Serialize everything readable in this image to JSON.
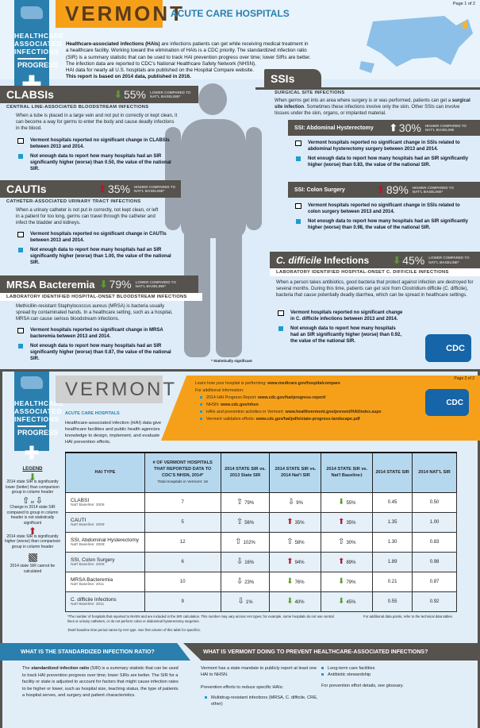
{
  "page1": {
    "page_label": "Page 1 of 2",
    "logo": {
      "lines": [
        "HEALTHCARE",
        "ASSOCIATED",
        "INFECTIONS"
      ],
      "progress": "PROGRESS"
    },
    "state": "VERMONT",
    "title": "ACUTE CARE HOSPITALS",
    "intro": {
      "bold_lead": "Healthcare-associated infections (HAIs)",
      "text": " are infections patients can get while receiving medical treatment in a healthcare facility. Working toward the elimination of HAIs is a CDC priority. The standardized infection ratio (SIR) is a summary statistic that can be used to track HAI prevention progress over time; lower SIRs are better. The infection data are reported to CDC's National Healthcare Safety Network (NHSN).",
      "line2": "HAI data for nearly all U.S. hospitals are published on the Hospital Compare website.",
      "line3": "This report is based on 2014 data, published in 2016."
    },
    "sections": {
      "clabsi": {
        "name": "CLABSIs",
        "arrow": "arrow-down-green",
        "pct": "55%",
        "compare": "LOWER COMPARED TO NAT'L BASELINE*",
        "subtitle": "CENTRAL LINE-ASSOCIATED BLOODSTREAM INFECTIONS",
        "desc": "When a tube is placed in a large vein and not put in correctly or kept clean, it can become a way for germs to enter the body and cause deadly infections in the blood.",
        "item1": "Vermont hospitals reported no significant change in CLABSIs between 2013 and 2014.",
        "item2": "Not enough data to report how many hospitals had an SIR significantly higher (worse) than 0.50, the value of the national SIR."
      },
      "cauti": {
        "name": "CAUTIs",
        "arrow": "arrow-up-red",
        "pct": "35%",
        "compare": "HIGHER COMPARED TO NAT'L BASELINE*",
        "subtitle": "CATHETER-ASSOCIATED URINARY TRACT INFECTIONS",
        "desc": "When a urinary catheter is not put in correctly, not kept clean, or left in a patient for too long, germs can travel through the catheter and infect the bladder and kidneys.",
        "item1": "Vermont hospitals reported no significant change in CAUTIs between 2013 and 2014.",
        "item2": "Not enough data to report how many hospitals had an SIR significantly higher (worse) than 1.00, the value of the national SIR."
      },
      "mrsa": {
        "name": "MRSA Bacteremia",
        "arrow": "arrow-down-green",
        "pct": "79%",
        "compare": "LOWER COMPARED TO NAT'L BASELINE*",
        "subtitle": "LABORATORY IDENTIFIED HOSPITAL-ONSET BLOODSTREAM INFECTIONS",
        "desc": "Methicillin-resistant Staphylococcus aureus (MRSA) is bacteria usually spread by contaminated hands. In a healthcare setting, such as a hospital, MRSA can cause serious bloodstream infections.",
        "item1": "Vermont hospitals reported no significant change in MRSA bacteremia between 2013 and 2014.",
        "item2": "Not enough data to report how many hospitals had an SIR significantly higher (worse) than 0.87, the value of the national SIR."
      },
      "ssi": {
        "name": "SSIs",
        "subtitle": "SURGICAL SITE INFECTIONS",
        "desc_a": "When germs get into an area where surgery is or was performed, patients can get a ",
        "desc_bold": "surgical site infection",
        "desc_b": ". Sometimes these infections involve only the skin. Other SSIs can involve tissues under the skin, organs, or implanted material."
      },
      "ssi_abd": {
        "name": "SSI: Abdominal Hysterectomy",
        "arrow": "arrow-up-white",
        "pct": "30%",
        "compare": "HIGHER COMPARED TO NAT'L BASELINE",
        "item1": "Vermont hospitals reported no significant change in SSIs related to abdominal hysterectomy surgery between 2013 and 2014.",
        "item2": "Not enough data to report how many hospitals had an SIR significantly higher (worse) than 0.83, the value of the national SIR."
      },
      "ssi_colon": {
        "name": "SSI: Colon Surgery",
        "arrow": "arrow-up-red",
        "pct": "89%",
        "compare": "HIGHER COMPARED TO NAT'L BASELINE*",
        "item1": "Vermont hospitals reported no significant change in SSIs related to colon surgery between 2013 and 2014.",
        "item2": "Not enough data to report how many hospitals had an SIR significantly higher (worse) than 0.98, the value of the national SIR."
      },
      "cdiff": {
        "name_italic": "C. difficile",
        "name": " Infections",
        "arrow": "arrow-down-green",
        "pct": "45%",
        "compare": "LOWER COMPARED TO NAT'L BASELINE*",
        "subtitle": "LABORATORY IDENTIFIED HOSPITAL-ONSET C. DIFFICILE INFECTIONS",
        "desc": "When a person takes antibiotics, good bacteria that protect against infection are destroyed for several months. During this time, patients can get sick from Clostridium difficile (C. difficile), bacteria that cause potentially deadly diarrhea, which can be spread in healthcare settings.",
        "item1": "Vermont hospitals reported no significant change in C. difficile infections between 2013 and 2014.",
        "item2": "Not enough data to report how many hospitals had an SIR significantly higher (worse) than 0.92, the value of the national SIR."
      }
    },
    "footnote": "* Statistically significant",
    "cdc_logo": "CDC"
  },
  "page2": {
    "page_label": "Page 2 of 2",
    "state": "VERMONT",
    "subtitle": "ACUTE CARE HOSPITALS",
    "desc": "Healthcare-associated infection (HAI) data give healthcare facilities and public health agencies knowledge to design, implement, and evaluate HAI prevention efforts.",
    "info": {
      "learn": "Learn how your hospital is performing: ",
      "learn_url": "www.medicare.gov/hospitalcompare",
      "more": "For additional information:",
      "links": [
        {
          "label": "2014 HAI Progress Report: ",
          "url": "www.cdc.gov/hai/progress-report/"
        },
        {
          "label": "NHSN: ",
          "url": "www.cdc.gov/nhsn"
        },
        {
          "label": "HAIs and prevention activities in Vermont: ",
          "url": "www.healthvermont.gov/prevent/HAI/index.aspx"
        },
        {
          "label": "Vermont validation efforts: ",
          "url": "www.cdc.gov/hai/pdfs/state-progress-landscape.pdf"
        }
      ]
    },
    "legend": {
      "title": "LEGEND",
      "lower": "2014 state SIR is significantly lower (better) than comparison group in column header",
      "or": "or",
      "nochange": "Change in 2014 state SIR compared to group in column header is not statistically significant",
      "higher": "2014 state SIR is significantly higher (worse) than comparison group in column header",
      "na": "2014 state SIR cannot be calculated"
    },
    "table": {
      "headers": [
        "HAI TYPE",
        "# OF VERMONT HOSPITALS THAT REPORTED DATA TO CDC'S NHSN, 2014*",
        "2014 STATE SIR vs. 2013 State SIR",
        "2014 STATE SIR vs. 2014 Nat'l SIR",
        "2014 STATE SIR vs. Nat'l Baseline‡",
        "2014 STATE SIR",
        "2014 NAT'L SIR"
      ],
      "total_note": "Total Hospitals in Vermont: 16",
      "rows": [
        {
          "type": "CLABSI",
          "baseline": "Nat'l Baseline: 2008",
          "hospitals": "7",
          "vs2013": {
            "icon": "arrow-up-outline",
            "pct": "79%"
          },
          "vsnat": {
            "icon": "arrow-down-outline",
            "pct": "9%"
          },
          "vsbase": {
            "icon": "arrow-down-green",
            "pct": "55%"
          },
          "state_sir": "0.45",
          "natl_sir": "0.50"
        },
        {
          "type": "CAUTI",
          "baseline": "Nat'l Baseline: 2009",
          "hospitals": "5",
          "vs2013": {
            "icon": "arrow-up-outline",
            "pct": "56%"
          },
          "vsnat": {
            "icon": "arrow-up-red",
            "pct": "35%"
          },
          "vsbase": {
            "icon": "arrow-up-red",
            "pct": "35%"
          },
          "state_sir": "1.35",
          "natl_sir": "1.00"
        },
        {
          "type": "SSI, Abdominal Hysterectomy",
          "baseline": "Nat'l Baseline: 2008",
          "hospitals": "12",
          "vs2013": {
            "icon": "arrow-up-outline",
            "pct": "102%"
          },
          "vsnat": {
            "icon": "arrow-up-outline",
            "pct": "58%"
          },
          "vsbase": {
            "icon": "arrow-up-outline",
            "pct": "30%"
          },
          "state_sir": "1.30",
          "natl_sir": "0.83"
        },
        {
          "type": "SSI, Colon Surgery",
          "baseline": "Nat'l Baseline: 2008",
          "hospitals": "6",
          "vs2013": {
            "icon": "arrow-down-outline",
            "pct": "16%"
          },
          "vsnat": {
            "icon": "arrow-up-red",
            "pct": "94%"
          },
          "vsbase": {
            "icon": "arrow-up-red",
            "pct": "89%"
          },
          "state_sir": "1.89",
          "natl_sir": "0.98"
        },
        {
          "type": "MRSA Bacteremia",
          "baseline": "Nat'l Baseline: 2011",
          "hospitals": "10",
          "vs2013": {
            "icon": "arrow-down-outline",
            "pct": "23%"
          },
          "vsnat": {
            "icon": "arrow-down-green",
            "pct": "76%"
          },
          "vsbase": {
            "icon": "arrow-down-green",
            "pct": "79%"
          },
          "state_sir": "0.21",
          "natl_sir": "0.87"
        },
        {
          "type": "C. difficile Infections",
          "baseline": "Nat'l Baseline: 2011",
          "hospitals": "9",
          "vs2013": {
            "icon": "arrow-down-outline",
            "pct": "1%"
          },
          "vsnat": {
            "icon": "arrow-down-green",
            "pct": "40%"
          },
          "vsbase": {
            "icon": "arrow-down-green",
            "pct": "45%"
          },
          "state_sir": "0.55",
          "natl_sir": "0.92"
        }
      ]
    },
    "footnote1": "*The number of hospitals that reported to NHSN and are included in the SIR calculation. This number may vary across HAI types; for example, some hospitals do not use central lines or urinary catheters, or do not perform colon or abdominal hysterectomy surgeries.",
    "footnote2": "‡Nat'l baseline time period varies by HAI type. See first column of this table for specifics.",
    "footnote_right": "For additional data points, refer to the technical data tables.",
    "sir": {
      "heading": "WHAT IS THE STANDARDIZED INFECTION RATIO?",
      "lead": "The ",
      "bold": "standardized infection ratio",
      "text": " (SIR) is a summary statistic that can be used to track HAI prevention progress over time; lower SIRs are better. The SIR for a facility or state is adjusted to account for factors that might cause infection rates to be higher or lower, such as hospital size, teaching status, the type of patients a hospital serves, and surgery and patient characteristics."
    },
    "prevent": {
      "heading": "WHAT IS VERMONT DOING TO PREVENT HEALTHCARE-ASSOCIATED INFECTIONS?",
      "mandate": "Vermont has a state mandate to publicly report at least one HAI to NHSN.",
      "efforts": "Prevention efforts to reduce specific HAIs:",
      "list1": [
        "Multidrug-resistant infections (MRSA, C. difficile, CRE, other)"
      ],
      "list2": [
        "Long-term care facilities",
        "Antibiotic stewardship"
      ],
      "details": "For prevention effort details, see glossary."
    }
  },
  "colors": {
    "brand_blue": "#2a7fae",
    "orange": "#f6a01a",
    "dark_gray": "#56524e",
    "header_blue": "#b6d8ef",
    "green": "#5a9b2e",
    "red": "#b3192b"
  }
}
